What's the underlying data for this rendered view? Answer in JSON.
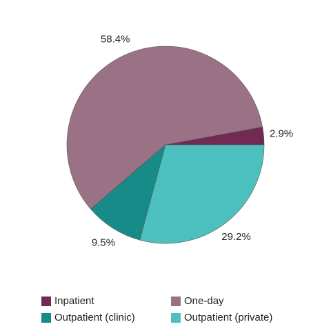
{
  "chart_data": {
    "type": "pie",
    "categories": [
      "Inpatient",
      "One-day",
      "Outpatient (clinic)",
      "Outpatient (private)"
    ],
    "values": [
      2.9,
      58.4,
      9.5,
      29.2
    ],
    "value_labels": [
      "2.9%",
      "58.4%",
      "9.5%",
      "29.2%"
    ],
    "colors": [
      "#722953",
      "#9b7285",
      "#168b87",
      "#4cc0bf"
    ],
    "legend": "bottom"
  }
}
